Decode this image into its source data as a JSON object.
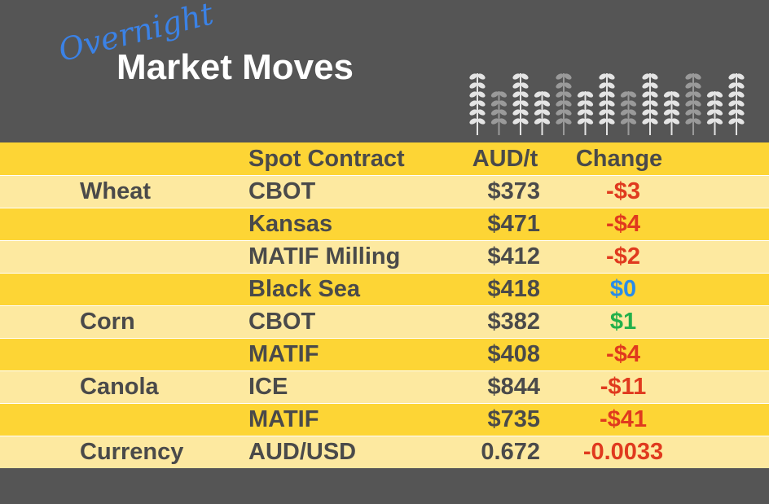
{
  "header": {
    "script_title": "Overnight",
    "title": "Market Moves"
  },
  "table": {
    "columns": [
      "Spot Contract",
      "AUD/t",
      "Change"
    ],
    "rows": [
      [
        "Wheat",
        "CBOT",
        "$373",
        "-$3"
      ],
      [
        null,
        "Kansas",
        "$471",
        "-$4"
      ],
      [
        null,
        "MATIF Milling",
        "$412",
        "-$2"
      ],
      [
        null,
        "Black Sea",
        "$418",
        "$0"
      ],
      [
        "Corn",
        "CBOT",
        "$382",
        "$1"
      ],
      [
        null,
        "MATIF",
        "$408",
        "-$4"
      ],
      [
        "Canola",
        "ICE",
        "$844",
        "-$11"
      ],
      [
        null,
        "MATIF",
        "$735",
        "-$41"
      ],
      [
        "Currency",
        "AUD/USD",
        "0.672",
        "-0.0033"
      ]
    ],
    "change_colors": [
      "#e03a1e",
      "#e03a1e",
      "#e03a1e",
      "#2a8ce8",
      "#22b04a",
      "#e03a1e",
      "#e03a1e",
      "#e03a1e",
      "#e03a1e"
    ]
  }
}
